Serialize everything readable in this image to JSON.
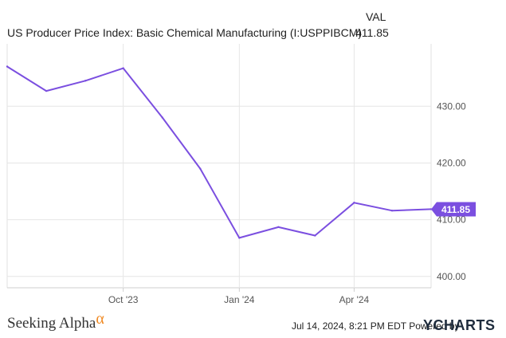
{
  "legend": {
    "header": "VAL",
    "series_name": "US Producer Price Index: Basic Chemical Manufacturing (I:USPPIBCM)",
    "series_value": "411.85"
  },
  "chart_data": {
    "type": "line",
    "series": [
      {
        "name": "US Producer Price Index: Basic Chemical Manufacturing (I:USPPIBCM)",
        "color": "#7b4fe0",
        "points": [
          {
            "x": "2023-07-01",
            "y": 437.0
          },
          {
            "x": "2023-08-01",
            "y": 432.7
          },
          {
            "x": "2023-09-01",
            "y": 434.5
          },
          {
            "x": "2023-10-01",
            "y": 436.7
          },
          {
            "x": "2023-11-01",
            "y": 428.0
          },
          {
            "x": "2023-12-01",
            "y": 419.0
          },
          {
            "x": "2024-01-01",
            "y": 406.8
          },
          {
            "x": "2024-02-01",
            "y": 408.7
          },
          {
            "x": "2024-03-01",
            "y": 407.2
          },
          {
            "x": "2024-04-01",
            "y": 413.0
          },
          {
            "x": "2024-05-01",
            "y": 411.6
          },
          {
            "x": "2024-06-01",
            "y": 411.85
          }
        ]
      }
    ],
    "x_ticks": [
      "Oct '23",
      "Jan '24",
      "Apr '24"
    ],
    "y_ticks": [
      "400.00",
      "410.00",
      "420.00",
      "430.00"
    ],
    "ylim": [
      398.0,
      441.0
    ],
    "last_value_label": "411.85",
    "grid": true
  },
  "footer": {
    "brand": "Seeking Alpha",
    "brand_symbol": "α",
    "timestamp": "Jul 14, 2024, 8:21 PM EDT Powered by",
    "logo_text": "YCHARTS"
  }
}
